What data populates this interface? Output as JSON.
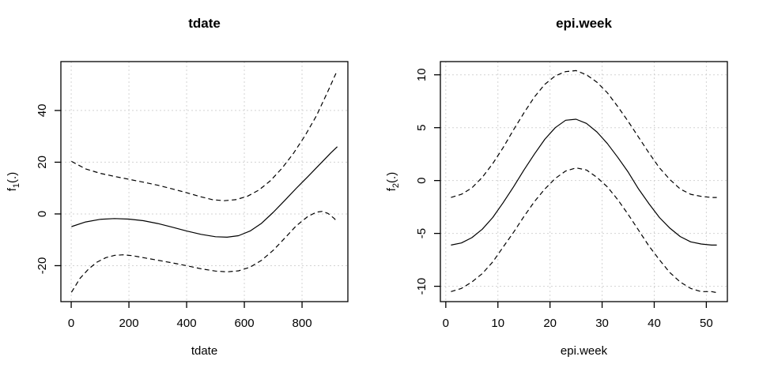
{
  "figure": {
    "background": "#ffffff",
    "type": "r-graphics-device"
  },
  "chart_data": [
    {
      "type": "line",
      "title": "tdate",
      "xlabel": "tdate",
      "ylabel": {
        "base": "f",
        "sub": "1",
        "args": "(.)"
      },
      "xlim": [
        -35.8,
        958.8
      ],
      "ylim": [
        -33.9,
        58.9
      ],
      "xticks": [
        0,
        200,
        400,
        600,
        800
      ],
      "yticks": [
        -20,
        0,
        20,
        40
      ],
      "grid": true,
      "grid_color": "#d3d3d3",
      "line_color": "#000000",
      "legend": "none",
      "series": [
        {
          "name": "fit",
          "style": "solid",
          "points": [
            [
              1,
              -4.9
            ],
            [
              50,
              -3.1
            ],
            [
              100,
              -2.1
            ],
            [
              150,
              -1.8
            ],
            [
              200,
              -2.0
            ],
            [
              250,
              -2.6
            ],
            [
              300,
              -3.7
            ],
            [
              350,
              -5.1
            ],
            [
              400,
              -6.6
            ],
            [
              450,
              -7.9
            ],
            [
              500,
              -8.8
            ],
            [
              540,
              -9.0
            ],
            [
              580,
              -8.4
            ],
            [
              620,
              -6.6
            ],
            [
              660,
              -3.6
            ],
            [
              700,
              0.6
            ],
            [
              740,
              5.2
            ],
            [
              780,
              9.9
            ],
            [
              820,
              14.4
            ],
            [
              860,
              19.0
            ],
            [
              900,
              23.6
            ],
            [
              922,
              26.0
            ]
          ]
        },
        {
          "name": "upper-ci",
          "style": "dashed",
          "points": [
            [
              1,
              20.3
            ],
            [
              50,
              17.4
            ],
            [
              100,
              15.7
            ],
            [
              150,
              14.5
            ],
            [
              200,
              13.4
            ],
            [
              250,
              12.3
            ],
            [
              300,
              11.1
            ],
            [
              350,
              9.7
            ],
            [
              400,
              8.2
            ],
            [
              450,
              6.6
            ],
            [
              490,
              5.5
            ],
            [
              530,
              5.1
            ],
            [
              570,
              5.5
            ],
            [
              610,
              6.8
            ],
            [
              650,
              9.2
            ],
            [
              690,
              12.8
            ],
            [
              730,
              17.6
            ],
            [
              770,
              23.4
            ],
            [
              810,
              30.2
            ],
            [
              850,
              38.0
            ],
            [
              890,
              47.5
            ],
            [
              922,
              55.5
            ]
          ]
        },
        {
          "name": "lower-ci",
          "style": "dashed",
          "points": [
            [
              1,
              -30.3
            ],
            [
              30,
              -25.0
            ],
            [
              60,
              -21.3
            ],
            [
              90,
              -18.6
            ],
            [
              120,
              -16.9
            ],
            [
              150,
              -16.0
            ],
            [
              180,
              -15.8
            ],
            [
              210,
              -16.1
            ],
            [
              250,
              -16.9
            ],
            [
              300,
              -17.9
            ],
            [
              350,
              -18.9
            ],
            [
              400,
              -20.0
            ],
            [
              450,
              -21.2
            ],
            [
              500,
              -22.1
            ],
            [
              540,
              -22.4
            ],
            [
              580,
              -22.0
            ],
            [
              620,
              -20.6
            ],
            [
              660,
              -17.9
            ],
            [
              700,
              -14.1
            ],
            [
              740,
              -9.4
            ],
            [
              780,
              -4.6
            ],
            [
              820,
              -1.0
            ],
            [
              850,
              0.7
            ],
            [
              870,
              1.0
            ],
            [
              890,
              0.2
            ],
            [
              910,
              -1.6
            ],
            [
              922,
              -3.0
            ]
          ]
        }
      ]
    },
    {
      "type": "line",
      "title": "epi.week",
      "xlabel": "epi.week",
      "ylabel": {
        "base": "f",
        "sub": "2",
        "args": "(.)"
      },
      "xlim": [
        -1.04,
        54.04
      ],
      "ylim": [
        -11.45,
        11.25
      ],
      "xticks": [
        0,
        10,
        20,
        30,
        40,
        50
      ],
      "yticks": [
        -10,
        -5,
        0,
        5,
        10
      ],
      "grid": true,
      "grid_color": "#d3d3d3",
      "line_color": "#000000",
      "legend": "none",
      "series": [
        {
          "name": "fit",
          "style": "solid",
          "points": [
            [
              1,
              -6.1
            ],
            [
              3,
              -5.9
            ],
            [
              5,
              -5.4
            ],
            [
              7,
              -4.6
            ],
            [
              9,
              -3.5
            ],
            [
              11,
              -2.1
            ],
            [
              13,
              -0.6
            ],
            [
              15,
              1.0
            ],
            [
              17,
              2.5
            ],
            [
              19,
              3.9
            ],
            [
              21,
              5.0
            ],
            [
              23,
              5.7
            ],
            [
              25,
              5.8
            ],
            [
              27,
              5.4
            ],
            [
              29,
              4.6
            ],
            [
              31,
              3.5
            ],
            [
              33,
              2.2
            ],
            [
              35,
              0.8
            ],
            [
              37,
              -0.8
            ],
            [
              39,
              -2.2
            ],
            [
              41,
              -3.5
            ],
            [
              43,
              -4.5
            ],
            [
              45,
              -5.3
            ],
            [
              47,
              -5.8
            ],
            [
              49,
              -6.0
            ],
            [
              51,
              -6.1
            ],
            [
              52,
              -6.1
            ]
          ]
        },
        {
          "name": "upper-ci",
          "style": "dashed",
          "points": [
            [
              1,
              -1.6
            ],
            [
              3,
              -1.3
            ],
            [
              5,
              -0.7
            ],
            [
              7,
              0.3
            ],
            [
              9,
              1.6
            ],
            [
              11,
              3.1
            ],
            [
              13,
              4.8
            ],
            [
              15,
              6.4
            ],
            [
              17,
              7.9
            ],
            [
              19,
              9.1
            ],
            [
              21,
              9.9
            ],
            [
              23,
              10.3
            ],
            [
              25,
              10.4
            ],
            [
              27,
              10.0
            ],
            [
              29,
              9.3
            ],
            [
              31,
              8.3
            ],
            [
              33,
              7.0
            ],
            [
              35,
              5.6
            ],
            [
              37,
              4.1
            ],
            [
              39,
              2.6
            ],
            [
              41,
              1.2
            ],
            [
              43,
              0.1
            ],
            [
              45,
              -0.8
            ],
            [
              47,
              -1.3
            ],
            [
              49,
              -1.5
            ],
            [
              51,
              -1.6
            ],
            [
              52,
              -1.6
            ]
          ]
        },
        {
          "name": "lower-ci",
          "style": "dashed",
          "points": [
            [
              1,
              -10.5
            ],
            [
              3,
              -10.2
            ],
            [
              5,
              -9.6
            ],
            [
              7,
              -8.8
            ],
            [
              9,
              -7.7
            ],
            [
              11,
              -6.3
            ],
            [
              13,
              -4.9
            ],
            [
              15,
              -3.4
            ],
            [
              17,
              -2.0
            ],
            [
              19,
              -0.8
            ],
            [
              21,
              0.2
            ],
            [
              23,
              0.9
            ],
            [
              25,
              1.2
            ],
            [
              27,
              1.0
            ],
            [
              29,
              0.3
            ],
            [
              31,
              -0.6
            ],
            [
              33,
              -1.8
            ],
            [
              35,
              -3.2
            ],
            [
              37,
              -4.7
            ],
            [
              39,
              -6.2
            ],
            [
              41,
              -7.5
            ],
            [
              43,
              -8.7
            ],
            [
              45,
              -9.6
            ],
            [
              47,
              -10.2
            ],
            [
              49,
              -10.5
            ],
            [
              51,
              -10.5
            ],
            [
              52,
              -10.6
            ]
          ]
        }
      ]
    }
  ]
}
